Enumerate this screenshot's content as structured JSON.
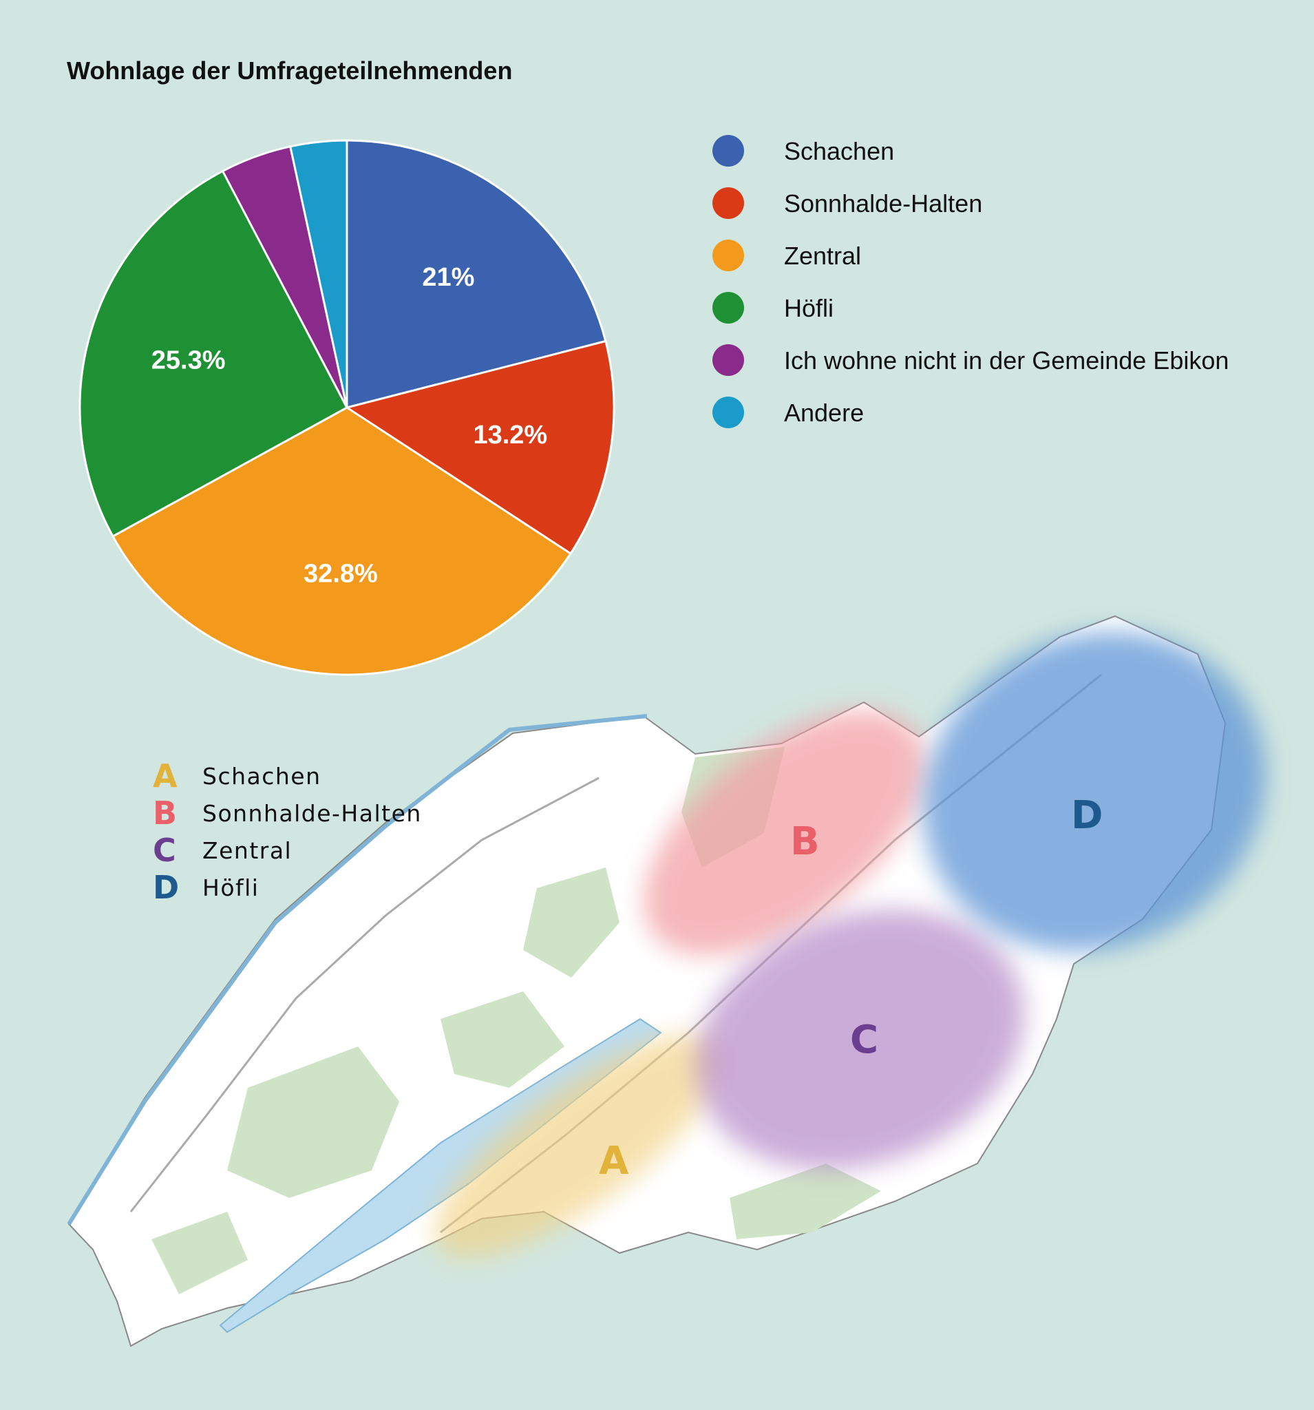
{
  "chart_data": {
    "type": "pie",
    "title": "Wohnlage der Umfrageteilnehmenden",
    "categories": [
      "Schachen",
      "Sonnhalde-Halten",
      "Zentral",
      "Höfli",
      "Ich wohne nicht in der Gemeinde Ebikon",
      "Andere"
    ],
    "values": [
      21.0,
      13.2,
      32.8,
      25.3,
      4.3,
      3.4
    ],
    "data_labels": [
      "21%",
      "13.2%",
      "32.8%",
      "25.3%",
      "",
      ""
    ],
    "colors": [
      "#3b62ae",
      "#db3a17",
      "#f3991c",
      "#1f9135",
      "#8a2a8a",
      "#1a9bca"
    ],
    "legend_placement": "right"
  },
  "map": {
    "legend": [
      {
        "letter": "A",
        "label": "Schachen",
        "color": "#e2b33a"
      },
      {
        "letter": "B",
        "label": "Sonnhalde-Halten",
        "color": "#e9606a"
      },
      {
        "letter": "C",
        "label": "Zentral",
        "color": "#6b3e90"
      },
      {
        "letter": "D",
        "label": "Höfli",
        "color": "#1f5a8e"
      }
    ]
  }
}
